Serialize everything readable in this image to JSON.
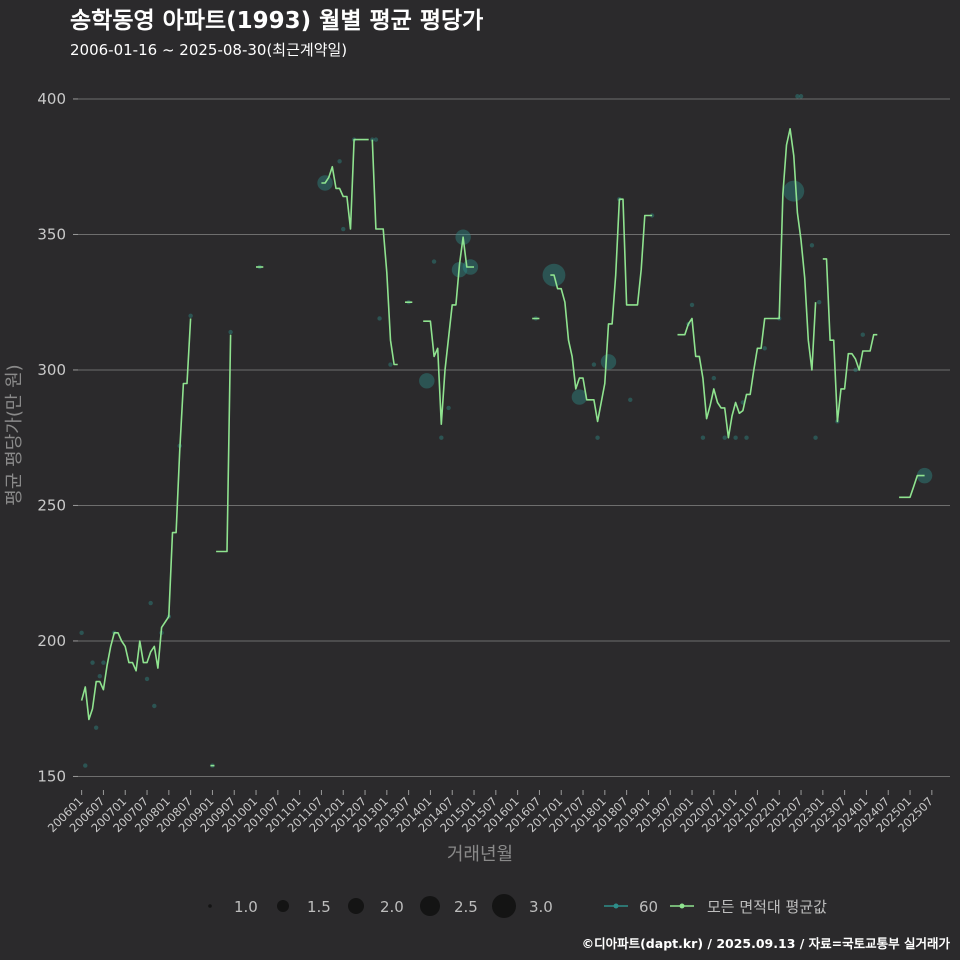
{
  "chart_data": {
    "type": "line",
    "title": "송학동영 아파트(1993) 월별 평균 평당가",
    "subtitle": "2006-01-16 ~ 2025-08-30(최근계약일)",
    "xlabel": "거래년월",
    "ylabel": "평균 평당가(만 원)",
    "caption": "©디아파트(dapt.kr) / 2025.09.13 / 자료=국토교통부 실거래가",
    "ylim": [
      145,
      407
    ],
    "y_ticks": [
      150,
      200,
      250,
      300,
      350,
      400
    ],
    "y_tick_labels": [
      "150",
      "200",
      "250",
      "300",
      "350",
      "400"
    ],
    "x_range": [
      "200512",
      "202512"
    ],
    "x_ticks": [
      "200601",
      "200607",
      "200701",
      "200707",
      "200801",
      "200807",
      "200901",
      "200907",
      "201001",
      "201007",
      "201101",
      "201107",
      "201201",
      "201207",
      "201301",
      "201307",
      "201401",
      "201407",
      "201501",
      "201507",
      "201601",
      "201607",
      "201701",
      "201707",
      "201801",
      "201807",
      "201901",
      "201907",
      "202001",
      "202007",
      "202101",
      "202107",
      "202201",
      "202207",
      "202301",
      "202307",
      "202401",
      "202407",
      "202501",
      "202507"
    ],
    "series": [
      {
        "name": "모든 면적대 평균값",
        "color": "#8fe38f",
        "segments": [
          [
            [
              "200601",
              178
            ],
            [
              "200602",
              183
            ],
            [
              "200603",
              171
            ],
            [
              "200604",
              175
            ],
            [
              "200605",
              185
            ],
            [
              "200606",
              185
            ],
            [
              "200607",
              182
            ],
            [
              "200608",
              191
            ],
            [
              "200609",
              198
            ],
            [
              "200610",
              203
            ],
            [
              "200611",
              203
            ],
            [
              "200612",
              200
            ],
            [
              "200701",
              198
            ],
            [
              "200702",
              192
            ],
            [
              "200703",
              192
            ],
            [
              "200704",
              189
            ],
            [
              "200705",
              200
            ],
            [
              "200706",
              192
            ],
            [
              "200707",
              192
            ],
            [
              "200708",
              196
            ],
            [
              "200709",
              198
            ],
            [
              "200710",
              190
            ],
            [
              "200711",
              205
            ],
            [
              "200712",
              207
            ],
            [
              "200801",
              209
            ],
            [
              "200802",
              240
            ],
            [
              "200803",
              240
            ],
            [
              "200804",
              270
            ],
            [
              "200805",
              295
            ],
            [
              "200806",
              295
            ],
            [
              "200807",
              319
            ]
          ],
          [
            [
              "200901",
              154
            ]
          ],
          [
            [
              "200902",
              233
            ],
            [
              "200903",
              233
            ],
            [
              "200904",
              233
            ],
            [
              "200905",
              233
            ],
            [
              "200906",
              313
            ]
          ],
          [
            [
              "201001",
              338
            ],
            [
              "201002",
              338
            ],
            [
              "201003",
              338
            ]
          ],
          [
            [
              "201107",
              369
            ],
            [
              "201108",
              369
            ],
            [
              "201109",
              371
            ],
            [
              "201110",
              375
            ],
            [
              "201111",
              367
            ],
            [
              "201112",
              367
            ],
            [
              "201201",
              364
            ],
            [
              "201202",
              364
            ],
            [
              "201203",
              352
            ],
            [
              "201204",
              385
            ],
            [
              "201205",
              385
            ],
            [
              "201206",
              385
            ],
            [
              "201207",
              385
            ],
            [
              "201208",
              385
            ]
          ],
          [
            [
              "201209",
              385
            ],
            [
              "201210",
              352
            ],
            [
              "201211",
              352
            ],
            [
              "201212",
              352
            ],
            [
              "201301",
              336
            ],
            [
              "201302",
              311
            ],
            [
              "201303",
              302
            ],
            [
              "201304",
              302
            ]
          ],
          [
            [
              "201306",
              325
            ],
            [
              "201307",
              325
            ],
            [
              "201308",
              325
            ]
          ],
          [
            [
              "201311",
              318
            ],
            [
              "201312",
              318
            ],
            [
              "201401",
              318
            ],
            [
              "201402",
              305
            ],
            [
              "201403",
              308
            ],
            [
              "201404",
              280
            ],
            [
              "201405",
              300
            ],
            [
              "201406",
              312
            ],
            [
              "201407",
              324
            ],
            [
              "201408",
              324
            ],
            [
              "201409",
              339
            ],
            [
              "201410",
              349
            ],
            [
              "201411",
              338
            ],
            [
              "201412",
              338
            ],
            [
              "201501",
              338
            ]
          ],
          [
            [
              "201605",
              319
            ],
            [
              "201606",
              319
            ],
            [
              "201607",
              319
            ]
          ],
          [
            [
              "201610",
              335
            ],
            [
              "201611",
              335
            ],
            [
              "201612",
              330
            ],
            [
              "201701",
              330
            ],
            [
              "201702",
              325
            ],
            [
              "201703",
              311
            ],
            [
              "201704",
              305
            ],
            [
              "201705",
              293
            ],
            [
              "201706",
              297
            ],
            [
              "201707",
              297
            ],
            [
              "201708",
              289
            ],
            [
              "201709",
              289
            ],
            [
              "201710",
              289
            ],
            [
              "201711",
              281
            ],
            [
              "201712",
              288
            ],
            [
              "201801",
              295
            ],
            [
              "201802",
              317
            ],
            [
              "201803",
              317
            ],
            [
              "201804",
              335
            ],
            [
              "201805",
              363
            ],
            [
              "201806",
              363
            ],
            [
              "201807",
              324
            ],
            [
              "201808",
              324
            ],
            [
              "201809",
              324
            ],
            [
              "201810",
              324
            ],
            [
              "201811",
              337
            ],
            [
              "201812",
              357
            ],
            [
              "201901",
              357
            ],
            [
              "201902",
              357
            ]
          ],
          [
            [
              "201909",
              313
            ],
            [
              "201910",
              313
            ],
            [
              "201911",
              313
            ],
            [
              "201912",
              317
            ],
            [
              "202001",
              319
            ],
            [
              "202002",
              305
            ],
            [
              "202003",
              305
            ],
            [
              "202004",
              297
            ],
            [
              "202005",
              282
            ],
            [
              "202006",
              287
            ],
            [
              "202007",
              293
            ],
            [
              "202008",
              288
            ],
            [
              "202009",
              286
            ],
            [
              "202010",
              286
            ],
            [
              "202011",
              275
            ],
            [
              "202012",
              283
            ],
            [
              "202101",
              288
            ],
            [
              "202102",
              284
            ],
            [
              "202103",
              285
            ],
            [
              "202104",
              291
            ],
            [
              "202105",
              291
            ],
            [
              "202106",
              300
            ],
            [
              "202107",
              308
            ],
            [
              "202108",
              308
            ],
            [
              "202109",
              319
            ],
            [
              "202110",
              319
            ],
            [
              "202111",
              319
            ],
            [
              "202112",
              319
            ],
            [
              "202201",
              319
            ],
            [
              "202202",
              365
            ],
            [
              "202203",
              383
            ],
            [
              "202204",
              389
            ],
            [
              "202205",
              379
            ],
            [
              "202206",
              358
            ],
            [
              "202207",
              348
            ],
            [
              "202208",
              334
            ],
            [
              "202209",
              311
            ],
            [
              "202210",
              300
            ],
            [
              "202211",
              325
            ]
          ],
          [
            [
              "202301",
              341
            ],
            [
              "202302",
              341
            ],
            [
              "202303",
              311
            ],
            [
              "202304",
              311
            ],
            [
              "202305",
              281
            ],
            [
              "202306",
              293
            ],
            [
              "202307",
              293
            ],
            [
              "202308",
              306
            ],
            [
              "202309",
              306
            ],
            [
              "202310",
              304
            ],
            [
              "202311",
              300
            ],
            [
              "202312",
              307
            ],
            [
              "202401",
              307
            ],
            [
              "202402",
              307
            ],
            [
              "202403",
              313
            ],
            [
              "202404",
              313
            ]
          ],
          [
            [
              "202410",
              253
            ],
            [
              "202411",
              253
            ],
            [
              "202412",
              253
            ],
            [
              "202501",
              253
            ],
            [
              "202502",
              257
            ],
            [
              "202503",
              261
            ],
            [
              "202504",
              261
            ],
            [
              "202505",
              261
            ]
          ]
        ]
      },
      {
        "name": "60",
        "color": "#2e8e8a",
        "points": [
          [
            "200601",
            203,
            1
          ],
          [
            "200602",
            154,
            1
          ],
          [
            "200604",
            192,
            1
          ],
          [
            "200605",
            168,
            1
          ],
          [
            "200606",
            187,
            1
          ],
          [
            "200607",
            192,
            1
          ],
          [
            "200610",
            203,
            1
          ],
          [
            "200707",
            186,
            1
          ],
          [
            "200708",
            214,
            1
          ],
          [
            "200709",
            176,
            1
          ],
          [
            "200711",
            203,
            1
          ],
          [
            "200801",
            209,
            1
          ],
          [
            "200804",
            272,
            1
          ],
          [
            "200807",
            320,
            1
          ],
          [
            "200901",
            154,
            1
          ],
          [
            "200906",
            314,
            1
          ],
          [
            "201002",
            338,
            1
          ],
          [
            "201108",
            369,
            2.2
          ],
          [
            "201112",
            377,
            1
          ],
          [
            "201201",
            352,
            1
          ],
          [
            "201204",
            385,
            1
          ],
          [
            "201209",
            385,
            1
          ],
          [
            "201210",
            385,
            1
          ],
          [
            "201211",
            319,
            1
          ],
          [
            "201302",
            302,
            1
          ],
          [
            "201307",
            325,
            1
          ],
          [
            "201312",
            296,
            2.2
          ],
          [
            "201402",
            340,
            1
          ],
          [
            "201404",
            275,
            1
          ],
          [
            "201406",
            286,
            1
          ],
          [
            "201409",
            337,
            2.2
          ],
          [
            "201410",
            349,
            2.2
          ],
          [
            "201412",
            338,
            2.2
          ],
          [
            "201606",
            319,
            1
          ],
          [
            "201611",
            335,
            3.0
          ],
          [
            "201706",
            290,
            2.2
          ],
          [
            "201710",
            302,
            1
          ],
          [
            "201711",
            275,
            1
          ],
          [
            "201802",
            303,
            2.2
          ],
          [
            "201805",
            363,
            1
          ],
          [
            "201808",
            289,
            1
          ],
          [
            "201902",
            357,
            1
          ],
          [
            "201912",
            317,
            1
          ],
          [
            "202001",
            324,
            1
          ],
          [
            "202004",
            275,
            1
          ],
          [
            "202007",
            297,
            1
          ],
          [
            "202010",
            275,
            1
          ],
          [
            "202101",
            275,
            1
          ],
          [
            "202103",
            288,
            1
          ],
          [
            "202104",
            275,
            1
          ],
          [
            "202109",
            308,
            1
          ],
          [
            "202201",
            319,
            1
          ],
          [
            "202205",
            366,
            2.8
          ],
          [
            "202206",
            401,
            1
          ],
          [
            "202207",
            401,
            1
          ],
          [
            "202210",
            346,
            1
          ],
          [
            "202211",
            275,
            1
          ],
          [
            "202212",
            325,
            1
          ],
          [
            "202305",
            281,
            1
          ],
          [
            "202310",
            300,
            1
          ],
          [
            "202312",
            313,
            1
          ],
          [
            "202505",
            261,
            2.2
          ]
        ]
      }
    ],
    "legend": {
      "size_labels": [
        "1.0",
        "1.5",
        "2.0",
        "2.5",
        "3.0"
      ],
      "size_values": [
        1.0,
        1.5,
        2.0,
        2.5,
        3.0
      ],
      "series_labels": [
        "60",
        "모든 면적대 평균값"
      ]
    }
  }
}
